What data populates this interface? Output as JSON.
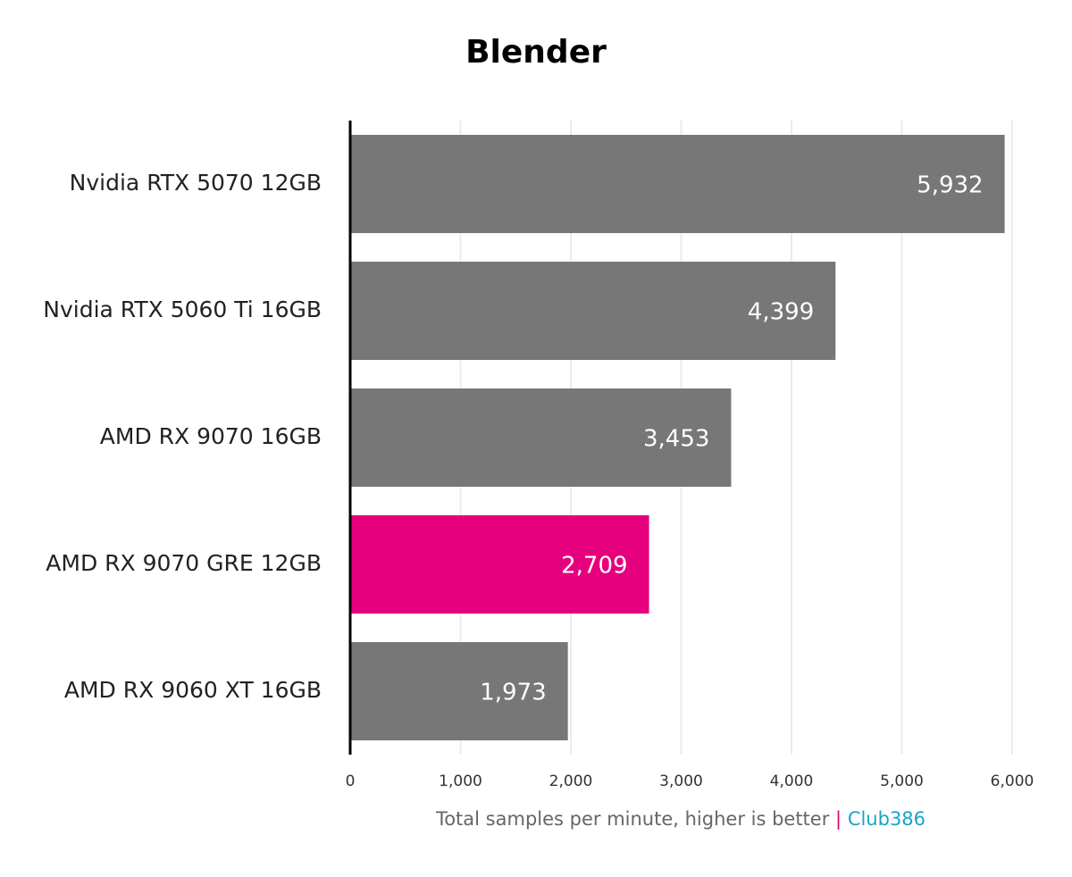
{
  "chart_data": {
    "type": "hbar",
    "title": "Blender",
    "categories": [
      "Nvidia RTX 5070 12GB",
      "Nvidia RTX 5060 Ti 16GB",
      "AMD RX 9070 16GB",
      "AMD RX 9070 GRE 12GB",
      "AMD RX 9060 XT 16GB"
    ],
    "values": [
      5932,
      4399,
      3453,
      2709,
      1973
    ],
    "value_labels": [
      "5,932",
      "4,399",
      "3,453",
      "2,709",
      "1,973"
    ],
    "colors": [
      "#777777",
      "#777777",
      "#777777",
      "#e6007e",
      "#777777"
    ],
    "xlim": [
      0,
      6000
    ],
    "xticks": [
      0,
      {
        "value": 1000,
        "label": "1,000"
      },
      {
        "value": 2000,
        "label": "2,000"
      },
      {
        "value": 3000,
        "label": "3,000"
      },
      {
        "value": 4000,
        "label": "4,000"
      },
      {
        "value": 5000,
        "label": "5,000"
      },
      {
        "value": 6000,
        "label": "6,000"
      }
    ],
    "xlabel_parts": [
      "Total samples per minute, higher is better",
      "|",
      "Club386"
    ],
    "xlabel_colors": [
      "#666666",
      "#e6007e",
      "#1aa3c8"
    ],
    "grid": true
  }
}
